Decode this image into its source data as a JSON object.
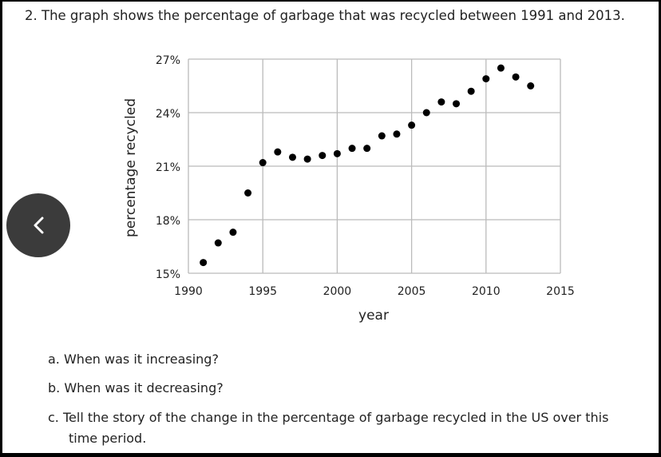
{
  "question": "2. The graph shows the percentage of garbage that was recycled between 1991 and 2013.",
  "subquestions": [
    "a. When was it increasing?",
    "b. When was it decreasing?",
    "c. Tell the story of the change in the percentage of garbage recycled in the US over this",
    "time period."
  ],
  "back_button_icon": "chevron-left-icon",
  "chart_data": {
    "type": "scatter",
    "title": "",
    "xlabel": "year",
    "ylabel": "percentage recycled",
    "xlim": [
      1990,
      2015
    ],
    "ylim": [
      15,
      27
    ],
    "xticks": [
      "1990",
      "1995",
      "2000",
      "2005",
      "2010",
      "2015"
    ],
    "yticks": [
      "15%",
      "18%",
      "21%",
      "24%",
      "27%"
    ],
    "grid": true,
    "x": [
      1991,
      1992,
      1993,
      1994,
      1995,
      1996,
      1997,
      1998,
      1999,
      2000,
      2001,
      2002,
      2003,
      2004,
      2005,
      2006,
      2007,
      2008,
      2009,
      2010,
      2011,
      2012,
      2013
    ],
    "y": [
      15.6,
      16.7,
      17.3,
      19.5,
      21.2,
      21.8,
      21.5,
      21.4,
      21.6,
      21.7,
      22.0,
      22.0,
      22.7,
      22.8,
      23.3,
      24.0,
      24.6,
      24.5,
      25.2,
      25.9,
      26.5,
      26.0,
      25.5
    ]
  }
}
